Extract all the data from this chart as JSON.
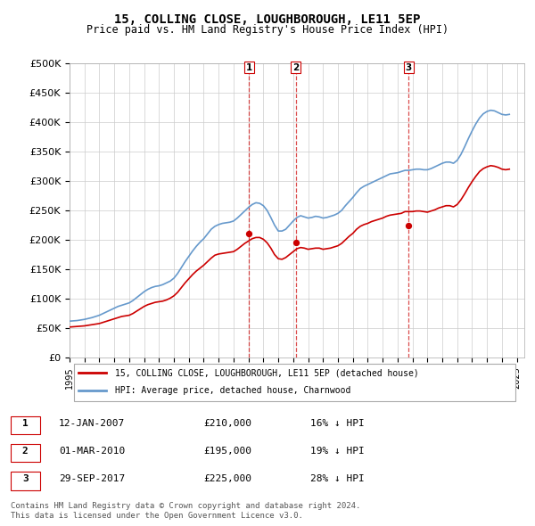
{
  "title": "15, COLLING CLOSE, LOUGHBOROUGH, LE11 5EP",
  "subtitle": "Price paid vs. HM Land Registry's House Price Index (HPI)",
  "ylabel_ticks": [
    "£0",
    "£50K",
    "£100K",
    "£150K",
    "£200K",
    "£250K",
    "£300K",
    "£350K",
    "£400K",
    "£450K",
    "£500K"
  ],
  "ytick_values": [
    0,
    50000,
    100000,
    150000,
    200000,
    250000,
    300000,
    350000,
    400000,
    450000,
    500000
  ],
  "xlim_start": 1995.0,
  "xlim_end": 2025.5,
  "ylim": [
    0,
    500000
  ],
  "hpi_color": "#6699cc",
  "price_color": "#cc0000",
  "vline_color": "#cc0000",
  "grid_color": "#cccccc",
  "background_color": "#ffffff",
  "transactions": [
    {
      "id": 1,
      "date_num": 2007.04,
      "price": 210000,
      "label": "12-JAN-2007",
      "amount": "£210,000",
      "pct": "16% ↓ HPI"
    },
    {
      "id": 2,
      "date_num": 2010.17,
      "price": 195000,
      "label": "01-MAR-2010",
      "amount": "£195,000",
      "pct": "19% ↓ HPI"
    },
    {
      "id": 3,
      "date_num": 2017.75,
      "price": 225000,
      "label": "29-SEP-2017",
      "amount": "£225,000",
      "pct": "28% ↓ HPI"
    }
  ],
  "legend_label_price": "15, COLLING CLOSE, LOUGHBOROUGH, LE11 5EP (detached house)",
  "legend_label_hpi": "HPI: Average price, detached house, Charnwood",
  "footnote": "Contains HM Land Registry data © Crown copyright and database right 2024.\nThis data is licensed under the Open Government Licence v3.0.",
  "hpi_data": {
    "x": [
      1995.0,
      1995.25,
      1995.5,
      1995.75,
      1996.0,
      1996.25,
      1996.5,
      1996.75,
      1997.0,
      1997.25,
      1997.5,
      1997.75,
      1998.0,
      1998.25,
      1998.5,
      1998.75,
      1999.0,
      1999.25,
      1999.5,
      1999.75,
      2000.0,
      2000.25,
      2000.5,
      2000.75,
      2001.0,
      2001.25,
      2001.5,
      2001.75,
      2002.0,
      2002.25,
      2002.5,
      2002.75,
      2003.0,
      2003.25,
      2003.5,
      2003.75,
      2004.0,
      2004.25,
      2004.5,
      2004.75,
      2005.0,
      2005.25,
      2005.5,
      2005.75,
      2006.0,
      2006.25,
      2006.5,
      2006.75,
      2007.0,
      2007.25,
      2007.5,
      2007.75,
      2008.0,
      2008.25,
      2008.5,
      2008.75,
      2009.0,
      2009.25,
      2009.5,
      2009.75,
      2010.0,
      2010.25,
      2010.5,
      2010.75,
      2011.0,
      2011.25,
      2011.5,
      2011.75,
      2012.0,
      2012.25,
      2012.5,
      2012.75,
      2013.0,
      2013.25,
      2013.5,
      2013.75,
      2014.0,
      2014.25,
      2014.5,
      2014.75,
      2015.0,
      2015.25,
      2015.5,
      2015.75,
      2016.0,
      2016.25,
      2016.5,
      2016.75,
      2017.0,
      2017.25,
      2017.5,
      2017.75,
      2018.0,
      2018.25,
      2018.5,
      2018.75,
      2019.0,
      2019.25,
      2019.5,
      2019.75,
      2020.0,
      2020.25,
      2020.5,
      2020.75,
      2021.0,
      2021.25,
      2021.5,
      2021.75,
      2022.0,
      2022.25,
      2022.5,
      2022.75,
      2023.0,
      2023.25,
      2023.5,
      2023.75,
      2024.0,
      2024.25,
      2024.5
    ],
    "y": [
      62000,
      62500,
      63000,
      64000,
      65000,
      66500,
      68000,
      70000,
      72000,
      75000,
      78000,
      81000,
      84000,
      87000,
      89000,
      91000,
      93000,
      97000,
      102000,
      107000,
      112000,
      116000,
      119000,
      121000,
      122000,
      124000,
      127000,
      130000,
      135000,
      143000,
      153000,
      163000,
      172000,
      181000,
      189000,
      196000,
      202000,
      210000,
      218000,
      223000,
      226000,
      228000,
      229000,
      230000,
      232000,
      237000,
      243000,
      249000,
      255000,
      260000,
      263000,
      262000,
      258000,
      250000,
      238000,
      225000,
      215000,
      215000,
      218000,
      225000,
      232000,
      238000,
      241000,
      239000,
      237000,
      238000,
      240000,
      239000,
      237000,
      238000,
      240000,
      242000,
      245000,
      250000,
      258000,
      265000,
      272000,
      280000,
      287000,
      291000,
      294000,
      297000,
      300000,
      303000,
      306000,
      309000,
      312000,
      313000,
      314000,
      316000,
      318000,
      318000,
      319000,
      320000,
      320000,
      319000,
      319000,
      321000,
      324000,
      327000,
      330000,
      332000,
      332000,
      330000,
      335000,
      345000,
      358000,
      372000,
      385000,
      397000,
      407000,
      414000,
      418000,
      420000,
      419000,
      416000,
      413000,
      412000,
      413000
    ]
  },
  "price_data": {
    "x": [
      1995.0,
      1995.25,
      1995.5,
      1995.75,
      1996.0,
      1996.25,
      1996.5,
      1996.75,
      1997.0,
      1997.25,
      1997.5,
      1997.75,
      1998.0,
      1998.25,
      1998.5,
      1998.75,
      1999.0,
      1999.25,
      1999.5,
      1999.75,
      2000.0,
      2000.25,
      2000.5,
      2000.75,
      2001.0,
      2001.25,
      2001.5,
      2001.75,
      2002.0,
      2002.25,
      2002.5,
      2002.75,
      2003.0,
      2003.25,
      2003.5,
      2003.75,
      2004.0,
      2004.25,
      2004.5,
      2004.75,
      2005.0,
      2005.25,
      2005.5,
      2005.75,
      2006.0,
      2006.25,
      2006.5,
      2006.75,
      2007.0,
      2007.25,
      2007.5,
      2007.75,
      2008.0,
      2008.25,
      2008.5,
      2008.75,
      2009.0,
      2009.25,
      2009.5,
      2009.75,
      2010.0,
      2010.25,
      2010.5,
      2010.75,
      2011.0,
      2011.25,
      2011.5,
      2011.75,
      2012.0,
      2012.25,
      2012.5,
      2012.75,
      2013.0,
      2013.25,
      2013.5,
      2013.75,
      2014.0,
      2014.25,
      2014.5,
      2014.75,
      2015.0,
      2015.25,
      2015.5,
      2015.75,
      2016.0,
      2016.25,
      2016.5,
      2016.75,
      2017.0,
      2017.25,
      2017.5,
      2017.75,
      2018.0,
      2018.25,
      2018.5,
      2018.75,
      2019.0,
      2019.25,
      2019.5,
      2019.75,
      2020.0,
      2020.25,
      2020.5,
      2020.75,
      2021.0,
      2021.25,
      2021.5,
      2021.75,
      2022.0,
      2022.25,
      2022.5,
      2022.75,
      2023.0,
      2023.25,
      2023.5,
      2023.75,
      2024.0,
      2024.25,
      2024.5
    ],
    "y": [
      52000,
      52500,
      53000,
      53500,
      54000,
      55000,
      56000,
      57000,
      58000,
      60000,
      62000,
      64000,
      66000,
      68000,
      70000,
      71000,
      72000,
      75000,
      79000,
      83000,
      87000,
      90000,
      92000,
      94000,
      95000,
      96000,
      98000,
      101000,
      105000,
      111000,
      119000,
      127000,
      134000,
      141000,
      147000,
      152000,
      157000,
      163000,
      169000,
      174000,
      176000,
      177000,
      178000,
      179000,
      180000,
      184000,
      189000,
      194000,
      198000,
      202000,
      204000,
      204000,
      201000,
      195000,
      186000,
      175000,
      168000,
      167000,
      170000,
      175000,
      180000,
      185000,
      187000,
      186000,
      184000,
      185000,
      186000,
      186000,
      184000,
      185000,
      186000,
      188000,
      190000,
      194000,
      200000,
      206000,
      211000,
      218000,
      223000,
      226000,
      228000,
      231000,
      233000,
      235000,
      237000,
      240000,
      242000,
      243000,
      244000,
      245000,
      248000,
      248000,
      248000,
      249000,
      249000,
      248000,
      247000,
      249000,
      251000,
      254000,
      256000,
      258000,
      258000,
      256000,
      260000,
      268000,
      278000,
      289000,
      299000,
      308000,
      316000,
      321000,
      324000,
      326000,
      325000,
      323000,
      320000,
      319000,
      320000
    ]
  }
}
